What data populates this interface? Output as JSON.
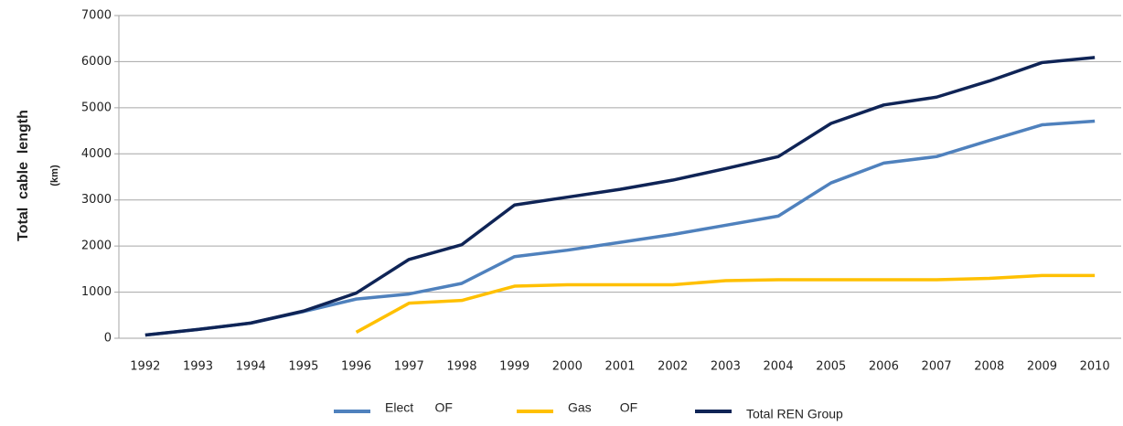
{
  "chart_data": {
    "type": "line",
    "y_label": "Total  cable  length",
    "y_unit": "(km)",
    "categories": [
      "1992",
      "1993",
      "1994",
      "1995",
      "1996",
      "1997",
      "1998",
      "1999",
      "2000",
      "2001",
      "2002",
      "2003",
      "2004",
      "2005",
      "2006",
      "2007",
      "2008",
      "2009",
      "2010"
    ],
    "series": [
      {
        "name": "Elect      OF",
        "color": "#4f81bd",
        "values": [
          70,
          190,
          330,
          580,
          850,
          960,
          1190,
          1770,
          1910,
          2080,
          2250,
          2450,
          2650,
          3370,
          3800,
          3940,
          4290,
          4630,
          4710
        ]
      },
      {
        "name": "Gas        OF",
        "color": "#ffc000",
        "values": [
          null,
          null,
          null,
          null,
          130,
          760,
          820,
          1130,
          1160,
          1160,
          1160,
          1250,
          1270,
          1270,
          1270,
          1270,
          1300,
          1360,
          1360
        ]
      },
      {
        "name": "Total REN Group",
        "color": "#0f2456",
        "values": [
          70,
          190,
          330,
          590,
          980,
          1710,
          2030,
          2890,
          3060,
          3230,
          3430,
          3680,
          3940,
          4660,
          5060,
          5230,
          5580,
          5980,
          6090
        ]
      }
    ],
    "ylim": [
      0,
      7000
    ],
    "yticks": [
      0,
      1000,
      2000,
      3000,
      4000,
      5000,
      6000,
      7000
    ],
    "grid": true,
    "legend": "bottom"
  }
}
